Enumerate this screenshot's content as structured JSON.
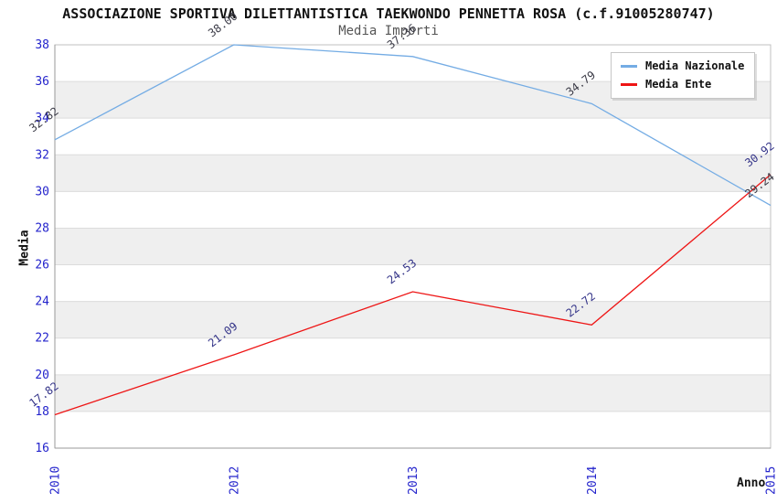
{
  "chart_data": {
    "type": "line",
    "title": "ASSOCIAZIONE SPORTIVA DILETTANTISTICA TAEKWONDO PENNETTA ROSA (c.f.91005280747)",
    "subtitle": "Media Importi",
    "xlabel": "Anno",
    "ylabel": "Media",
    "x": [
      "2010",
      "2012",
      "2013",
      "2014",
      "2015"
    ],
    "series": [
      {
        "name": "Media Nazionale",
        "color": "#74ACE4",
        "label_color": "#3A3A46",
        "values": [
          32.82,
          38.0,
          37.36,
          34.79,
          29.24
        ],
        "labels": [
          "32.82",
          "38.00",
          "37.36",
          "34.79",
          "29.24"
        ]
      },
      {
        "name": "Media Ente",
        "color": "#EE1515",
        "label_color": "#333388",
        "values": [
          17.82,
          21.09,
          24.53,
          22.72,
          30.92
        ],
        "labels": [
          "17.82",
          "21.09",
          "24.53",
          "22.72",
          "30.92"
        ]
      }
    ],
    "ylim": [
      16,
      38
    ],
    "ystep": 2,
    "yticks": [
      16,
      18,
      20,
      22,
      24,
      26,
      28,
      30,
      32,
      34,
      36,
      38
    ],
    "tick_color": "#2424CC",
    "grid": {
      "band_colors": [
        "#FFFFFF",
        "#EFEFEF"
      ],
      "line_color": "#DCDCDC",
      "border_color": "#C0C0C0",
      "axis_color": "#999999"
    },
    "legend_position": "top-right",
    "x_rotation_deg": -90,
    "label_rotation_deg": -37
  }
}
